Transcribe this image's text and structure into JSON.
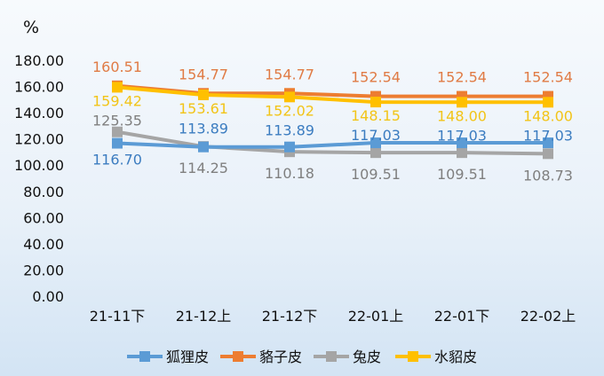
{
  "chart_data": {
    "type": "line",
    "title": "",
    "ylabel": "%",
    "xlabel": "",
    "categories": [
      "21-11下",
      "21-12上",
      "21-12下",
      "22-01上",
      "22-01下",
      "22-02上"
    ],
    "ylim": [
      0,
      180
    ],
    "yticks": [
      "0.00",
      "20.00",
      "40.00",
      "60.00",
      "80.00",
      "100.00",
      "120.00",
      "140.00",
      "160.00",
      "180.00"
    ],
    "grid": false,
    "legend_position": "bottom",
    "series": [
      {
        "name": "狐狸皮",
        "color": "#5b9bd5",
        "label_color": "#3b7cc0",
        "values": [
          116.7,
          113.89,
          113.89,
          117.03,
          117.03,
          117.03
        ],
        "labels": [
          "116.70",
          "113.89",
          "113.89",
          "117.03",
          "117.03",
          "117.03"
        ]
      },
      {
        "name": "貉子皮",
        "color": "#ed7d31",
        "label_color": "#e07b45",
        "values": [
          160.51,
          154.77,
          154.77,
          152.54,
          152.54,
          152.54
        ],
        "labels": [
          "160.51",
          "154.77",
          "154.77",
          "152.54",
          "152.54",
          "152.54"
        ]
      },
      {
        "name": "兔皮",
        "color": "#a5a5a5",
        "label_color": "#7f7f7f",
        "values": [
          125.35,
          114.25,
          110.18,
          109.51,
          109.51,
          108.73
        ],
        "labels": [
          "125.35",
          "114.25",
          "110.18",
          "109.51",
          "109.51",
          "108.73"
        ]
      },
      {
        "name": "水貂皮",
        "color": "#ffc000",
        "label_color": "#f2c418",
        "values": [
          159.42,
          153.61,
          152.02,
          148.15,
          148.0,
          148.0
        ],
        "labels": [
          "159.42",
          "153.61",
          "152.02",
          "148.15",
          "148.00",
          "148.00"
        ]
      }
    ]
  }
}
